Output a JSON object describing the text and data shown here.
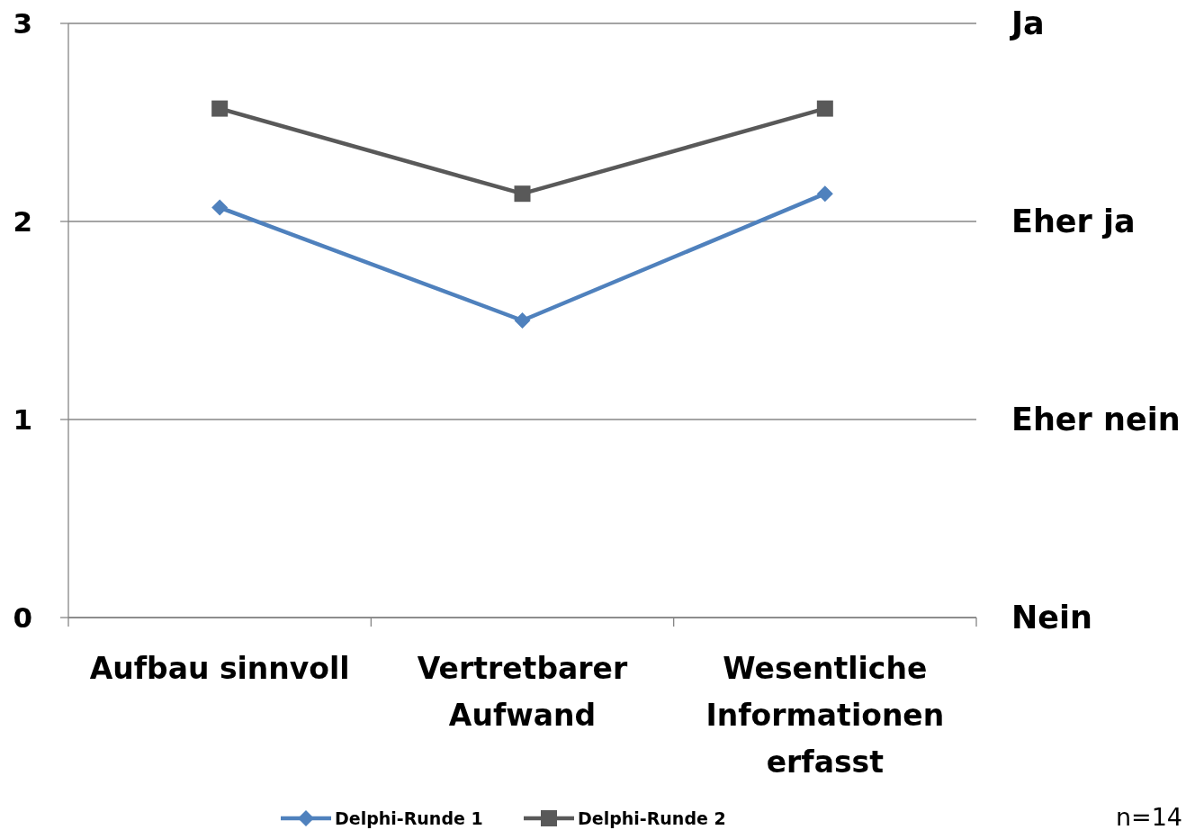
{
  "chart_data": {
    "type": "line",
    "categories": [
      "Aufbau sinnvoll",
      "Vertretbarer\nAufwand",
      "Wesentliche\nInformationen\nerfasst"
    ],
    "series": [
      {
        "name": "Delphi-Runde 1",
        "color": "#4f81bd",
        "marker": "diamond",
        "values": [
          2.07,
          1.5,
          2.14
        ]
      },
      {
        "name": "Delphi-Runde 2",
        "color": "#595959",
        "marker": "square",
        "values": [
          2.57,
          2.14,
          2.57
        ]
      }
    ],
    "ylim": [
      0,
      3
    ],
    "yticks": [
      0,
      1,
      2,
      3
    ],
    "grid": "y",
    "legend": "bottom",
    "annotations": [
      "Ja",
      "Eher ja",
      "Eher nein",
      "Nein",
      "n=14"
    ]
  }
}
